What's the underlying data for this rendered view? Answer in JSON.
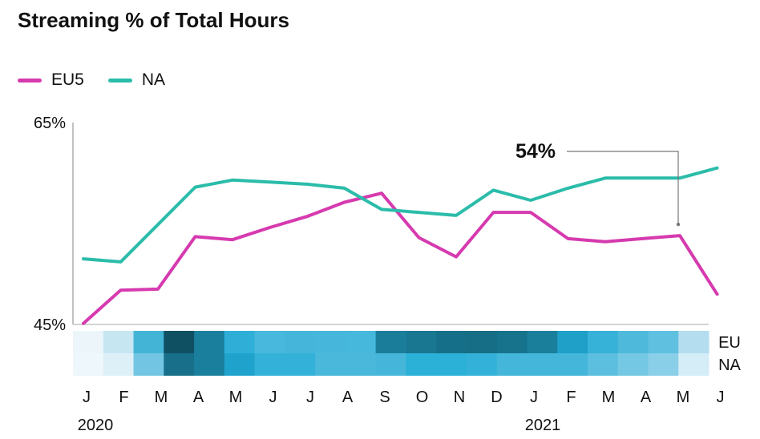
{
  "chart_data": {
    "type": "line",
    "title": "Streaming % of Total Hours",
    "x": [
      "J",
      "F",
      "M",
      "A",
      "M",
      "J",
      "J",
      "A",
      "S",
      "O",
      "N",
      "D",
      "J",
      "F",
      "M",
      "A",
      "M",
      "J"
    ],
    "year_labels": [
      {
        "label": "2020",
        "index": 0
      },
      {
        "label": "2021",
        "index": 12
      }
    ],
    "ylim": [
      45,
      65
    ],
    "y_ticks": [
      {
        "value": 65,
        "label": "65%"
      },
      {
        "value": 45,
        "label": "45%"
      }
    ],
    "series": [
      {
        "name": "EU5",
        "color": "#d63aaf",
        "values": [
          45.1,
          48.4,
          48.5,
          53.7,
          53.4,
          54.6,
          55.7,
          57.1,
          58.0,
          53.6,
          51.7,
          56.1,
          56.1,
          53.5,
          53.2,
          53.5,
          53.8,
          48.0
        ]
      },
      {
        "name": "NA",
        "color": "#2bbcaa",
        "values": [
          51.5,
          51.2,
          54.9,
          58.6,
          59.3,
          59.1,
          58.9,
          58.5,
          56.4,
          56.1,
          55.8,
          58.3,
          57.3,
          58.5,
          59.5,
          59.5,
          59.5,
          60.5
        ]
      }
    ],
    "heatmap": {
      "rows": [
        "EU",
        "NA"
      ],
      "colors": [
        [
          "#ecf6fa",
          "#c6e7f2",
          "#44b4d6",
          "#0f5063",
          "#197f9c",
          "#2fafd8",
          "#48b8dc",
          "#45b6da",
          "#46b7db",
          "#46b8dc",
          "#1a7e9a",
          "#197792",
          "#166f89",
          "#156d86",
          "#17728c",
          "#1a7f9b",
          "#1ea0c8",
          "#36b1d8",
          "#4eb9db",
          "#5fc0e0",
          "#b4def0"
        ],
        [
          "#eef7fb",
          "#ddf0f7",
          "#72c6e3",
          "#176f8a",
          "#197f9d",
          "#1fa3cd",
          "#33b1d8",
          "#33b1d8",
          "#49b8db",
          "#49b8db",
          "#45b6da",
          "#2bb0d8",
          "#2bb0d8",
          "#33b1d8",
          "#44b6da",
          "#44b6da",
          "#44b6da",
          "#5cbfe0",
          "#74c8e4",
          "#89cfe8",
          "#d4edf6"
        ]
      ]
    },
    "annotation": {
      "label": "54%",
      "series": "EU5",
      "index": 16
    }
  }
}
